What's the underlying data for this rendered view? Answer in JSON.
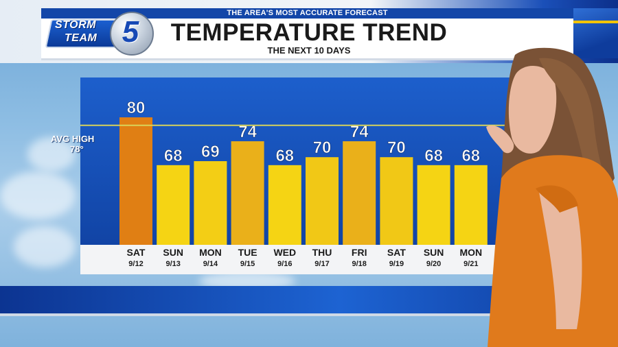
{
  "header": {
    "tagline": "THE AREA'S MOST ACCURATE FORECAST",
    "title": "TEMPERATURE TREND",
    "subtitle": "THE NEXT 10 DAYS"
  },
  "logo": {
    "storm": "STORM",
    "team": "TEAM",
    "number": "5"
  },
  "avg_high": {
    "label": "AVG HIGH",
    "value_label": "78°"
  },
  "colors": {
    "cool_bar": "#f5d414",
    "mid_bar": "#eab01a",
    "warm_bar": "#e07f14",
    "panel_blue": "#1d5fcc",
    "avg_line": "#d8d35a"
  },
  "chart_data": {
    "type": "bar",
    "title": "TEMPERATURE TREND",
    "subtitle": "THE NEXT 10 DAYS",
    "categories": [
      "SAT",
      "SUN",
      "MON",
      "TUE",
      "WED",
      "THU",
      "FRI",
      "SAT",
      "SUN",
      "MON"
    ],
    "dates": [
      "9/12",
      "9/13",
      "9/14",
      "9/15",
      "9/16",
      "9/17",
      "9/18",
      "9/19",
      "9/20",
      "9/21"
    ],
    "values": [
      80,
      68,
      69,
      74,
      68,
      70,
      74,
      70,
      68,
      68
    ],
    "reference_line": {
      "label": "AVG HIGH",
      "value": 78
    },
    "ylim": [
      48,
      90
    ],
    "grid": false,
    "legend": "none"
  }
}
